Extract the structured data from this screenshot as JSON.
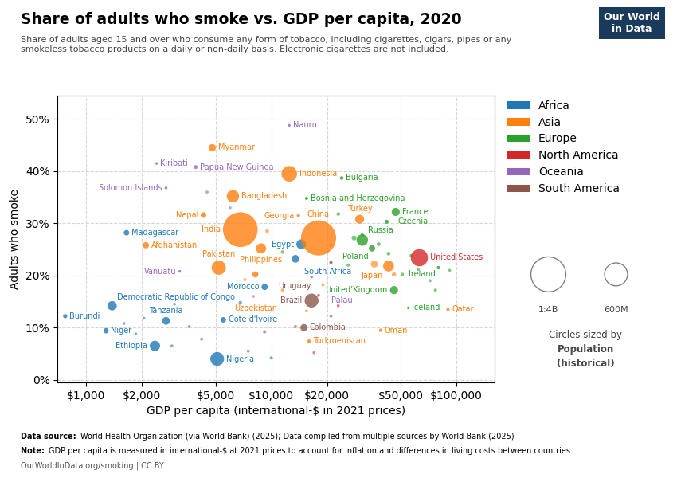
{
  "chart_data": {
    "type": "scatter",
    "title": "Share of adults who smoke vs. GDP per capita, 2020",
    "subtitle": "Share of adults aged 15 and over who consume any form of tobacco, including cigarettes, cigars, pipes or any\nsmokeless tobacco products on a daily or non-daily basis. Electronic cigarettes are not included.",
    "x_label": "GDP per capita (international-$ in 2021 prices)",
    "y_label": "Adults who smoke",
    "footnotes": [
      {
        "lead": "Data source: ",
        "text": "World Health Organization (via World Bank) (2025); Data compiled from multiple sources by World Bank (2025)"
      },
      {
        "lead": "Note: ",
        "text": "GDP per capita is measured in international-$ at 2021 prices to account for inflation and differences in living costs between countries."
      }
    ],
    "credit": "OurWorldInData.org/smoking | CC BY",
    "logo": "Our World\nin Data",
    "log": "x",
    "xlim": [
      700,
      160000
    ],
    "xticks": [
      {
        "value": 1000,
        "label": "$1,000"
      },
      {
        "value": 2000,
        "label": "$2,000"
      },
      {
        "value": 5000,
        "label": "$5,000"
      },
      {
        "value": 10000,
        "label": "$10,000"
      },
      {
        "value": 20000,
        "label": "$20,000"
      },
      {
        "value": 50000,
        "label": "$50,000"
      },
      {
        "value": 100000,
        "label": "$100,000"
      }
    ],
    "ylim": [
      -0.005,
      0.545
    ],
    "yticks": [
      {
        "value": 0.0,
        "label": "0%"
      },
      {
        "value": 0.1,
        "label": "10%"
      },
      {
        "value": 0.2,
        "label": "20%"
      },
      {
        "value": 0.3,
        "label": "30%"
      },
      {
        "value": 0.4,
        "label": "40%"
      },
      {
        "value": 0.5,
        "label": "50%"
      }
    ],
    "grid": true,
    "legend": "upper left",
    "series": [
      {
        "name": "Africa",
        "x": [
          3600,
          2050,
          1850,
          6800,
          3000,
          1600,
          4200,
          7500,
          10000,
          2900,
          1650,
          14500,
          13500,
          9200,
          1380,
          5500,
          2700,
          770,
          1280,
          2350,
          5100
        ],
        "y": [
          0.102,
          0.118,
          0.088,
          0.148,
          0.145,
          0.108,
          0.078,
          0.055,
          0.042,
          0.065,
          0.282,
          0.26,
          0.232,
          0.178,
          0.142,
          0.115,
          0.113,
          0.122,
          0.094,
          0.065,
          0.04
        ],
        "sizes": [
          2000000,
          1000000,
          800000,
          5000000,
          900000,
          600000,
          1800000,
          2500000,
          3000000,
          1200000,
          27000000,
          102000000,
          60000000,
          37000000,
          92000000,
          26000000,
          61000000,
          12000000,
          24000000,
          115000000,
          211000000
        ],
        "labels": [
          null,
          null,
          null,
          null,
          null,
          null,
          null,
          null,
          null,
          null,
          "Madagascar",
          "Egypt",
          "South Africa",
          "Morocco",
          "Democratic Republic of Congo",
          "Cote d'Ivoire",
          "Tanzania",
          "Burundi",
          "Niger",
          "Ethiopia",
          "Nigeria"
        ]
      },
      {
        "name": "Asia",
        "x": [
          9500,
          19000,
          21000,
          36000,
          46000,
          7200,
          11500,
          15500,
          4800,
          12500,
          6200,
          4300,
          6800,
          14000,
          30000,
          18000,
          2100,
          8800,
          5200,
          43000,
          8200,
          90000,
          39000,
          16000
        ],
        "y": [
          0.285,
          0.182,
          0.258,
          0.222,
          0.202,
          0.192,
          0.172,
          0.132,
          0.445,
          0.395,
          0.352,
          0.316,
          0.288,
          0.315,
          0.308,
          0.272,
          0.258,
          0.252,
          0.215,
          0.218,
          0.202,
          0.135,
          0.095,
          0.074
        ],
        "sizes": [
          7000000,
          3000000,
          4000000,
          50000000,
          13000000,
          3000000,
          4000000,
          2000000,
          54000000,
          273000000,
          167000000,
          29000000,
          1380000000,
          3700000,
          84000000,
          1412000000,
          38000000,
          111000000,
          225000000,
          126000000,
          34000000,
          2900000,
          4500000,
          6100000
        ],
        "labels": [
          null,
          null,
          null,
          null,
          null,
          null,
          null,
          null,
          "Myanmar",
          "Indonesia",
          "Bangladesh",
          "Nepal",
          "India",
          "Georgia",
          "Turkey",
          "China",
          "Afghanistan",
          "Philippines",
          "Pakistan",
          "Japan",
          "Uzbekistan",
          "Qatar",
          "Oman",
          "Turkmenistan"
        ]
      },
      {
        "name": "Europe",
        "x": [
          11500,
          26000,
          72000,
          92000,
          57000,
          28000,
          38000,
          43000,
          51000,
          62000,
          77000,
          23000,
          31000,
          24000,
          15500,
          47000,
          42000,
          31000,
          35000,
          80000,
          46000,
          55000
        ],
        "y": [
          0.245,
          0.22,
          0.19,
          0.21,
          0.238,
          0.272,
          0.26,
          0.242,
          0.202,
          0.212,
          0.172,
          0.318,
          0.278,
          0.387,
          0.348,
          0.322,
          0.303,
          0.268,
          0.252,
          0.215,
          0.172,
          0.138
        ],
        "sizes": [
          5000000,
          4000000,
          2000000,
          1000000,
          5000000,
          20000000,
          9000000,
          8000000,
          6000000,
          4000000,
          3000000,
          7000000,
          5000000,
          6900000,
          3300000,
          67000000,
          10700000,
          144000000,
          38000000,
          5000000,
          67000000,
          370000
        ],
        "labels": [
          null,
          null,
          null,
          null,
          null,
          null,
          null,
          null,
          null,
          null,
          null,
          null,
          null,
          "Bulgaria",
          "Bosnia and Herzegovina",
          "France",
          "Czechia",
          "Russia",
          "Poland",
          "Ireland",
          "United’Kingdom",
          "Iceland"
        ]
      },
      {
        "name": "North America",
        "x": [
          18000,
          23000,
          17000,
          63000
        ],
        "y": [
          0.162,
          0.142,
          0.052,
          0.235
        ],
        "sizes": [
          2000000,
          1500000,
          800000,
          331000000
        ],
        "labels": [
          null,
          null,
          null,
          "United States"
        ]
      },
      {
        "name": "Oceania",
        "x": [
          4500,
          6000,
          8000,
          12500,
          2400,
          3900,
          2700,
          3200,
          16500
        ],
        "y": [
          0.36,
          0.33,
          0.16,
          0.488,
          0.415,
          0.408,
          0.368,
          0.208,
          0.197
        ],
        "sizes": [
          2500000,
          500000,
          200000,
          11000,
          119000,
          9400000,
          690000,
          320000,
          18000
        ],
        "labels": [
          null,
          null,
          null,
          "Nauru",
          "Kiribati",
          "Papua New Guinea",
          "Solomon Islands",
          "Vanuatu",
          "Palau"
        ]
      },
      {
        "name": "South America",
        "x": [
          21000,
          13500,
          9200,
          21000,
          16500,
          15000
        ],
        "y": [
          0.122,
          0.102,
          0.092,
          0.225,
          0.152,
          0.1
        ],
        "sizes": [
          1500000,
          3000000,
          4000000,
          3500000,
          214000000,
          51000000
        ],
        "labels": [
          null,
          null,
          null,
          "Uruguay",
          "Brazil",
          "Colombia"
        ]
      }
    ],
    "size_legend": {
      "title": [
        "Circles sized by",
        "Population",
        "(historical)"
      ],
      "sizes": [
        1400000000,
        600000000
      ],
      "labels": [
        "1:4B",
        "600M"
      ]
    }
  }
}
